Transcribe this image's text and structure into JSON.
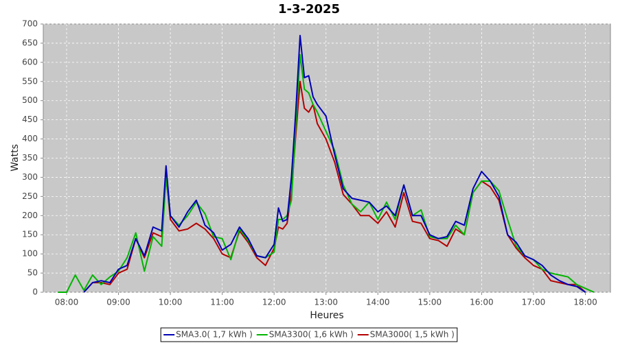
{
  "chart_data": {
    "type": "line",
    "title": "1-3-2025",
    "xlabel": "Heures",
    "ylabel": "Watts",
    "x": [
      470,
      480,
      490,
      500,
      510,
      520,
      530,
      540,
      550,
      560,
      570,
      580,
      590,
      595,
      600,
      610,
      620,
      630,
      640,
      650,
      660,
      670,
      680,
      690,
      700,
      710,
      720,
      725,
      730,
      735,
      740,
      745,
      750,
      755,
      760,
      765,
      770,
      780,
      790,
      800,
      810,
      820,
      830,
      840,
      850,
      860,
      870,
      880,
      890,
      900,
      910,
      920,
      930,
      940,
      950,
      960,
      970,
      980,
      990,
      1000,
      1010,
      1020,
      1030,
      1040,
      1050,
      1060,
      1070,
      1080,
      1090
    ],
    "series": [
      {
        "name": "SMA3.0( 1,7 kWh )",
        "color": "#0000b4",
        "values": [
          null,
          null,
          null,
          0,
          25,
          30,
          25,
          60,
          70,
          140,
          95,
          170,
          160,
          330,
          200,
          170,
          210,
          240,
          175,
          155,
          110,
          125,
          170,
          140,
          95,
          90,
          125,
          220,
          185,
          190,
          300,
          470,
          670,
          560,
          565,
          510,
          490,
          460,
          360,
          270,
          245,
          240,
          235,
          210,
          225,
          200,
          280,
          200,
          200,
          150,
          140,
          145,
          185,
          175,
          270,
          315,
          290,
          250,
          150,
          130,
          95,
          85,
          70,
          45,
          30,
          20,
          15,
          0,
          null
        ]
      },
      {
        "name": "SMA3300( 1,6 kWh )",
        "color": "#00b400",
        "values": [
          0,
          0,
          45,
          5,
          45,
          20,
          40,
          55,
          90,
          155,
          55,
          145,
          120,
          300,
          200,
          175,
          200,
          235,
          205,
          145,
          140,
          85,
          165,
          135,
          95,
          90,
          105,
          190,
          190,
          200,
          240,
          430,
          620,
          530,
          520,
          490,
          470,
          420,
          370,
          280,
          230,
          210,
          235,
          190,
          235,
          190,
          280,
          200,
          215,
          145,
          140,
          140,
          175,
          150,
          260,
          290,
          290,
          265,
          190,
          120,
          95,
          85,
          60,
          50,
          45,
          40,
          20,
          10,
          0
        ]
      },
      {
        "name": "SMA3000( 1,5 kWh )",
        "color": "#b40000",
        "values": [
          null,
          null,
          null,
          0,
          25,
          25,
          20,
          50,
          60,
          140,
          90,
          155,
          145,
          305,
          190,
          160,
          165,
          180,
          165,
          140,
          100,
          90,
          160,
          130,
          90,
          70,
          115,
          170,
          165,
          180,
          260,
          410,
          550,
          480,
          470,
          490,
          440,
          400,
          340,
          255,
          230,
          200,
          200,
          180,
          210,
          170,
          260,
          185,
          180,
          140,
          135,
          120,
          165,
          150,
          260,
          290,
          275,
          240,
          150,
          115,
          90,
          70,
          60,
          30,
          25,
          20,
          20,
          0,
          null
        ]
      }
    ],
    "xlim": [
      453,
      1109
    ],
    "xticks": [
      {
        "value": 480,
        "label": "08:00"
      },
      {
        "value": 540,
        "label": "09:00"
      },
      {
        "value": 600,
        "label": "10:00"
      },
      {
        "value": 660,
        "label": "11:00"
      },
      {
        "value": 720,
        "label": "12:00"
      },
      {
        "value": 780,
        "label": "13:00"
      },
      {
        "value": 840,
        "label": "14:00"
      },
      {
        "value": 900,
        "label": "15:00"
      },
      {
        "value": 960,
        "label": "16:00"
      },
      {
        "value": 1020,
        "label": "17:00"
      },
      {
        "value": 1080,
        "label": "18:00"
      }
    ],
    "ylim": [
      0,
      700
    ],
    "yticks": [
      0,
      50,
      100,
      150,
      200,
      250,
      300,
      350,
      400,
      450,
      500,
      550,
      600,
      650,
      700
    ],
    "grid": true
  }
}
